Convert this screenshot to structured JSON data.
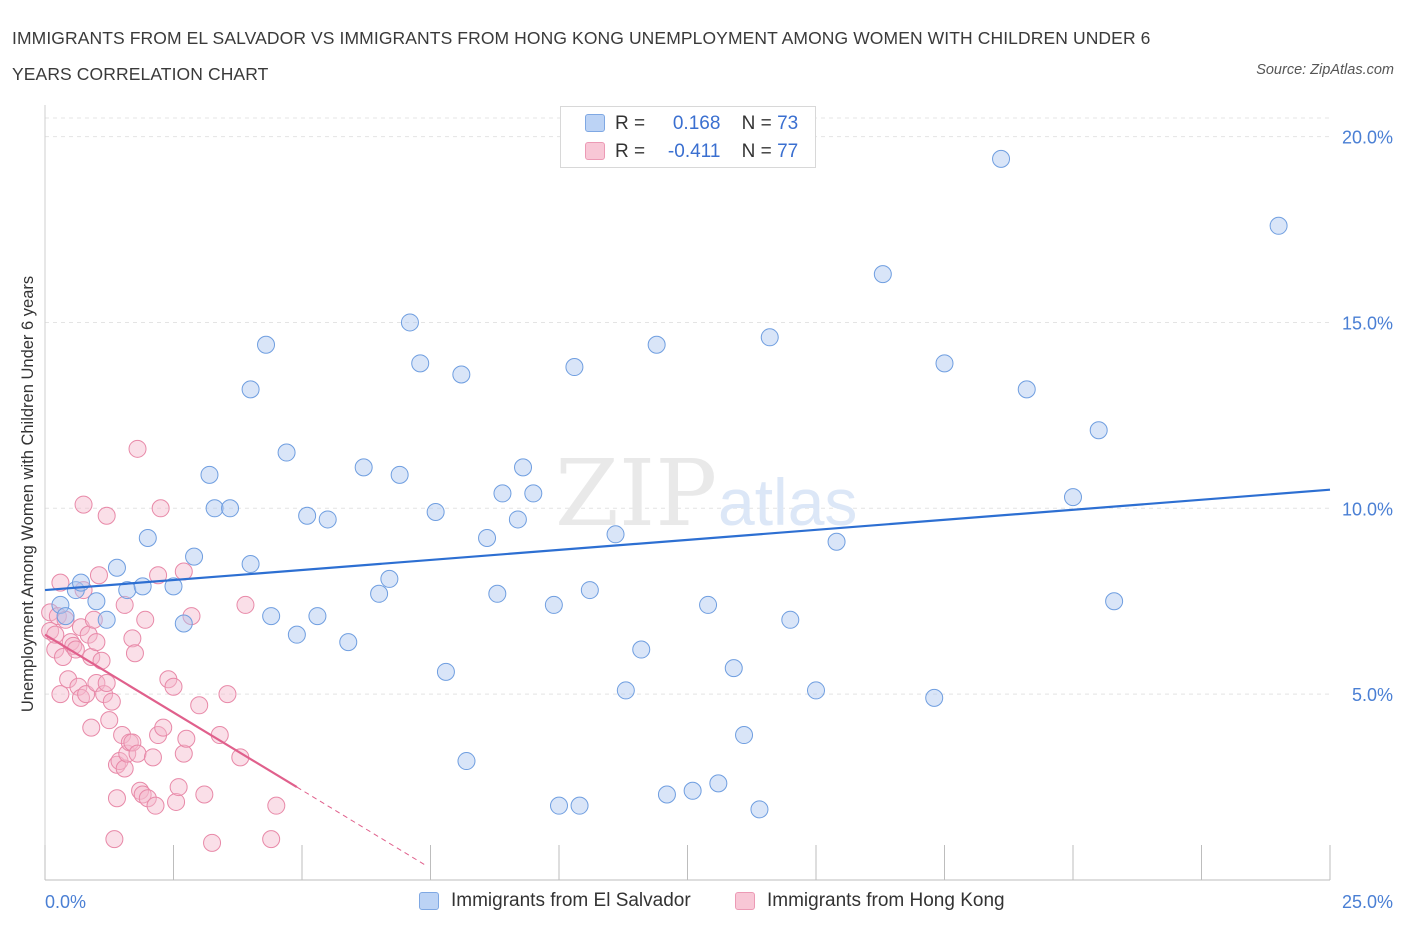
{
  "header": {
    "title": "IMMIGRANTS FROM EL SALVADOR VS IMMIGRANTS FROM HONG KONG UNEMPLOYMENT AMONG WOMEN WITH CHILDREN UNDER 6 YEARS CORRELATION CHART",
    "source": "Source: ZipAtlas.com"
  },
  "watermark": "ZIPatlas",
  "legend": {
    "series": [
      {
        "r_label": "R =",
        "r_value": "0.168",
        "n_label": "N =",
        "n_value": "73"
      },
      {
        "r_label": "R =",
        "r_value": "-0.411",
        "n_label": "N =",
        "n_value": "77"
      }
    ]
  },
  "colors": {
    "blue_fill": "#aac6f0",
    "blue_stroke": "#6f9ee0",
    "blue_line": "#2d6fd2",
    "pink_fill": "#f5b9cc",
    "pink_stroke": "#e889a8",
    "pink_line": "#e0608c",
    "accent_text": "#4a7fd4"
  },
  "chart_data": {
    "type": "scatter",
    "title": "IMMIGRANTS FROM EL SALVADOR VS IMMIGRANTS FROM HONG KONG UNEMPLOYMENT AMONG WOMEN WITH CHILDREN UNDER 6 YEARS CORRELATION CHART",
    "xlabel": "",
    "ylabel": "Unemployment Among Women with Children Under 6 years",
    "xlim": [
      0,
      25
    ],
    "ylim": [
      0,
      20.5
    ],
    "x_tick_labels": [
      "0.0%",
      "25.0%"
    ],
    "y_ticks": [
      5,
      10,
      15,
      20
    ],
    "y_tick_labels": [
      "5.0%",
      "10.0%",
      "15.0%",
      "20.0%"
    ],
    "grid": true,
    "legend_position": "top-center",
    "series": [
      {
        "name": "Immigrants from El Salvador",
        "color": "blue",
        "trend": {
          "x": [
            0,
            25
          ],
          "y": [
            7.8,
            10.5
          ]
        },
        "points": [
          [
            0.3,
            7.4
          ],
          [
            0.4,
            7.1
          ],
          [
            0.6,
            7.8
          ],
          [
            0.7,
            8.0
          ],
          [
            1.0,
            7.5
          ],
          [
            1.2,
            7.0
          ],
          [
            1.4,
            8.4
          ],
          [
            1.6,
            7.8
          ],
          [
            1.9,
            7.9
          ],
          [
            2.0,
            9.2
          ],
          [
            2.5,
            7.9
          ],
          [
            2.7,
            6.9
          ],
          [
            2.9,
            8.7
          ],
          [
            3.2,
            10.9
          ],
          [
            3.3,
            10.0
          ],
          [
            3.6,
            10.0
          ],
          [
            4.0,
            13.2
          ],
          [
            4.0,
            8.5
          ],
          [
            4.3,
            14.4
          ],
          [
            4.4,
            7.1
          ],
          [
            4.7,
            11.5
          ],
          [
            4.9,
            6.6
          ],
          [
            5.1,
            9.8
          ],
          [
            5.3,
            7.1
          ],
          [
            5.5,
            9.7
          ],
          [
            5.9,
            6.4
          ],
          [
            6.2,
            11.1
          ],
          [
            6.5,
            7.7
          ],
          [
            6.7,
            8.1
          ],
          [
            6.9,
            10.9
          ],
          [
            7.1,
            15.0
          ],
          [
            7.3,
            13.9
          ],
          [
            7.6,
            9.9
          ],
          [
            7.8,
            5.6
          ],
          [
            8.1,
            13.6
          ],
          [
            8.2,
            3.2
          ],
          [
            8.6,
            9.2
          ],
          [
            8.8,
            7.7
          ],
          [
            8.9,
            10.4
          ],
          [
            9.2,
            9.7
          ],
          [
            9.3,
            11.1
          ],
          [
            9.5,
            10.4
          ],
          [
            9.9,
            7.4
          ],
          [
            10.0,
            2.0
          ],
          [
            10.3,
            13.8
          ],
          [
            10.4,
            2.0
          ],
          [
            10.6,
            7.8
          ],
          [
            11.1,
            9.3
          ],
          [
            11.3,
            5.1
          ],
          [
            11.6,
            6.2
          ],
          [
            11.9,
            14.4
          ],
          [
            12.1,
            2.3
          ],
          [
            12.6,
            2.4
          ],
          [
            12.9,
            7.4
          ],
          [
            13.1,
            2.6
          ],
          [
            13.4,
            5.7
          ],
          [
            13.6,
            3.9
          ],
          [
            13.9,
            1.9
          ],
          [
            14.1,
            14.6
          ],
          [
            14.5,
            7.0
          ],
          [
            15.0,
            5.1
          ],
          [
            15.4,
            9.1
          ],
          [
            16.3,
            16.3
          ],
          [
            17.3,
            4.9
          ],
          [
            17.5,
            13.9
          ],
          [
            18.6,
            19.4
          ],
          [
            19.1,
            13.2
          ],
          [
            20.0,
            10.3
          ],
          [
            20.5,
            12.1
          ],
          [
            20.8,
            7.5
          ],
          [
            24.0,
            17.6
          ]
        ]
      },
      {
        "name": "Immigrants from Hong Kong",
        "color": "pink",
        "trend": {
          "x": [
            0,
            4.9
          ],
          "y": [
            6.6,
            2.5
          ]
        },
        "trend_extension": {
          "x": [
            4.9,
            7.4
          ],
          "y": [
            2.5,
            0.4
          ]
        },
        "points": [
          [
            0.1,
            7.2
          ],
          [
            0.1,
            6.7
          ],
          [
            0.2,
            6.2
          ],
          [
            0.2,
            6.6
          ],
          [
            0.25,
            7.1
          ],
          [
            0.3,
            8.0
          ],
          [
            0.3,
            5.0
          ],
          [
            0.35,
            6.0
          ],
          [
            0.4,
            7.0
          ],
          [
            0.45,
            5.4
          ],
          [
            0.5,
            6.4
          ],
          [
            0.55,
            6.3
          ],
          [
            0.6,
            6.2
          ],
          [
            0.65,
            5.2
          ],
          [
            0.7,
            6.8
          ],
          [
            0.7,
            4.9
          ],
          [
            0.75,
            7.8
          ],
          [
            0.75,
            10.1
          ],
          [
            0.8,
            5.0
          ],
          [
            0.85,
            6.6
          ],
          [
            0.9,
            4.1
          ],
          [
            0.9,
            6.0
          ],
          [
            0.95,
            7.0
          ],
          [
            1.0,
            6.4
          ],
          [
            1.0,
            5.3
          ],
          [
            1.05,
            8.2
          ],
          [
            1.1,
            5.9
          ],
          [
            1.15,
            5.0
          ],
          [
            1.2,
            9.8
          ],
          [
            1.2,
            5.3
          ],
          [
            1.25,
            4.3
          ],
          [
            1.3,
            4.8
          ],
          [
            1.35,
            1.1
          ],
          [
            1.4,
            3.1
          ],
          [
            1.4,
            2.2
          ],
          [
            1.45,
            3.2
          ],
          [
            1.5,
            3.9
          ],
          [
            1.55,
            3.0
          ],
          [
            1.55,
            7.4
          ],
          [
            1.6,
            3.4
          ],
          [
            1.65,
            3.7
          ],
          [
            1.7,
            6.5
          ],
          [
            1.7,
            3.7
          ],
          [
            1.75,
            6.1
          ],
          [
            1.8,
            3.4
          ],
          [
            1.8,
            11.6
          ],
          [
            1.85,
            2.4
          ],
          [
            1.9,
            2.3
          ],
          [
            1.95,
            7.0
          ],
          [
            2.0,
            2.2
          ],
          [
            2.1,
            3.3
          ],
          [
            2.15,
            2.0
          ],
          [
            2.2,
            8.2
          ],
          [
            2.2,
            3.9
          ],
          [
            2.25,
            10.0
          ],
          [
            2.3,
            4.1
          ],
          [
            2.4,
            5.4
          ],
          [
            2.5,
            5.2
          ],
          [
            2.55,
            2.1
          ],
          [
            2.6,
            2.5
          ],
          [
            2.7,
            3.4
          ],
          [
            2.7,
            8.3
          ],
          [
            2.75,
            3.8
          ],
          [
            2.85,
            7.1
          ],
          [
            3.0,
            4.7
          ],
          [
            3.1,
            2.3
          ],
          [
            3.25,
            1.0
          ],
          [
            3.4,
            3.9
          ],
          [
            3.55,
            5.0
          ],
          [
            3.8,
            3.3
          ],
          [
            3.9,
            7.4
          ],
          [
            4.4,
            1.1
          ],
          [
            4.5,
            2.0
          ]
        ]
      }
    ]
  },
  "bottom_legend": [
    {
      "label": "Immigrants from El Salvador"
    },
    {
      "label": "Immigrants from Hong Kong"
    }
  ]
}
